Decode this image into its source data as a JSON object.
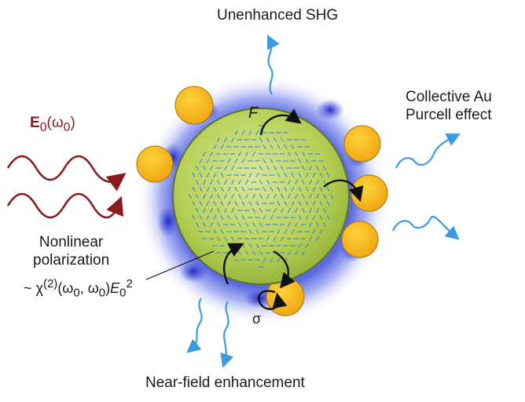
{
  "labels": {
    "unenhanced": "Unenhanced SHG",
    "collective_line1": "Collective Au",
    "collective_line2": "Purcell effect",
    "nonlinear_line1": "Nonlinear",
    "nonlinear_line2": "polarization",
    "chi_prefix": "~ χ",
    "chi_sup": "(2)",
    "chi_mid": "(ω",
    "chi_sub0a": "0",
    "chi_comma": ", ω",
    "chi_sub0b": "0",
    "chi_close": ")",
    "chi_E": "E",
    "chi_Esub": "0",
    "chi_Esup": "2",
    "near_field": "Near-field enhancement",
    "e0_E": "E",
    "e0_sub": "0",
    "e0_omega": "(ω",
    "e0_omega_sub": "0",
    "e0_close": ")",
    "force": "F",
    "sigma": "σ"
  },
  "colors": {
    "incident_wave": "#8b1a1f",
    "emitted_wave": "#3a9be0",
    "core_fill": "#b6cf55",
    "core_edge": "#5d7330",
    "gold": "#f3b512",
    "halo": "#3d4fd6",
    "pattern": "#2f86d6"
  }
}
